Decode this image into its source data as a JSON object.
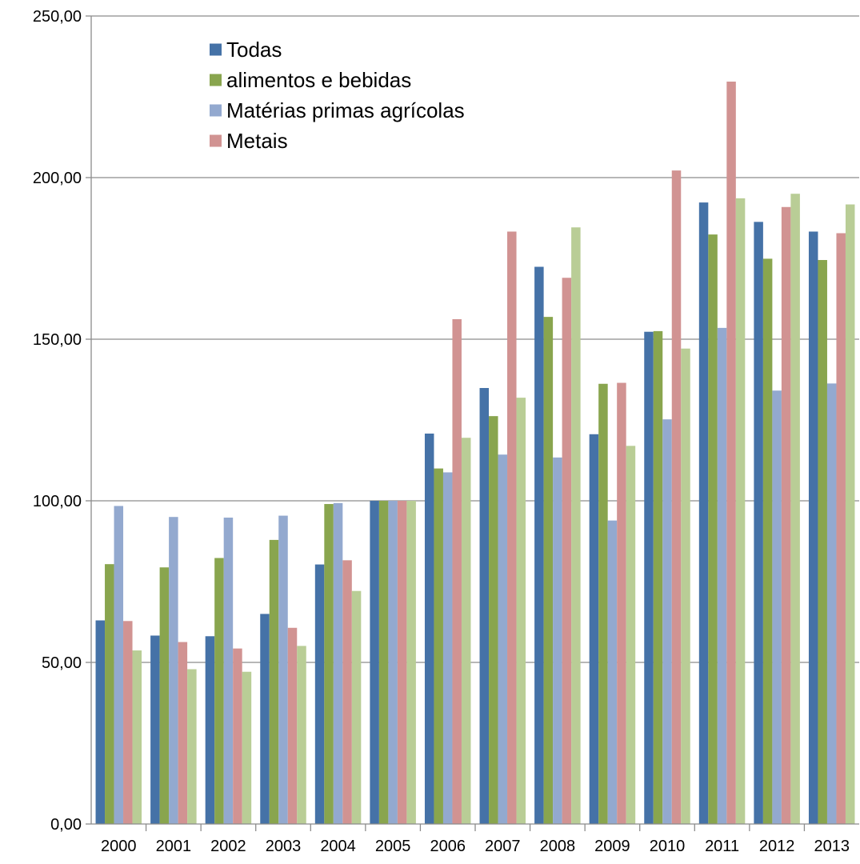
{
  "chart_data": {
    "type": "bar",
    "title": "",
    "xlabel": "",
    "ylabel": "",
    "ylim": [
      0,
      250
    ],
    "y_ticks": [
      "0,00",
      "50,00",
      "100,00",
      "150,00",
      "200,00",
      "250,00"
    ],
    "grid": "horizontal",
    "legend_position": "top-left",
    "categories": [
      "2000",
      "2001",
      "2002",
      "2003",
      "2004",
      "2005",
      "2006",
      "2007",
      "2008",
      "2009",
      "2010",
      "2011",
      "2012",
      "2013"
    ],
    "series": [
      {
        "name": "Todas",
        "color": "#4572A7",
        "values": [
          63.0,
          58.3,
          58.1,
          65.0,
          80.3,
          100.0,
          120.8,
          134.9,
          172.4,
          120.6,
          152.3,
          192.3,
          186.3,
          183.3
        ]
      },
      {
        "name": "alimentos e bebidas",
        "color": "#89A54E",
        "values": [
          80.4,
          79.4,
          82.3,
          87.9,
          99.0,
          100.0,
          110.0,
          126.2,
          156.9,
          136.2,
          152.5,
          182.4,
          174.9,
          174.5
        ]
      },
      {
        "name": "Matérias primas agrícolas",
        "color": "#93A9CF",
        "values": [
          98.4,
          95.0,
          94.8,
          95.4,
          99.3,
          100.0,
          108.8,
          114.3,
          113.4,
          93.9,
          125.2,
          153.5,
          134.1,
          136.3
        ]
      },
      {
        "name": "Metais",
        "color": "#D19392",
        "values": [
          62.8,
          56.3,
          54.3,
          60.7,
          81.6,
          100.0,
          156.2,
          183.3,
          169.0,
          136.5,
          202.2,
          229.7,
          190.9,
          182.8
        ]
      },
      {
        "color": "#B9CD96",
        "values": [
          53.7,
          47.9,
          47.1,
          55.1,
          72.1,
          100.0,
          119.5,
          131.9,
          184.6,
          117.0,
          147.1,
          193.6,
          195.0,
          191.7
        ]
      }
    ]
  }
}
